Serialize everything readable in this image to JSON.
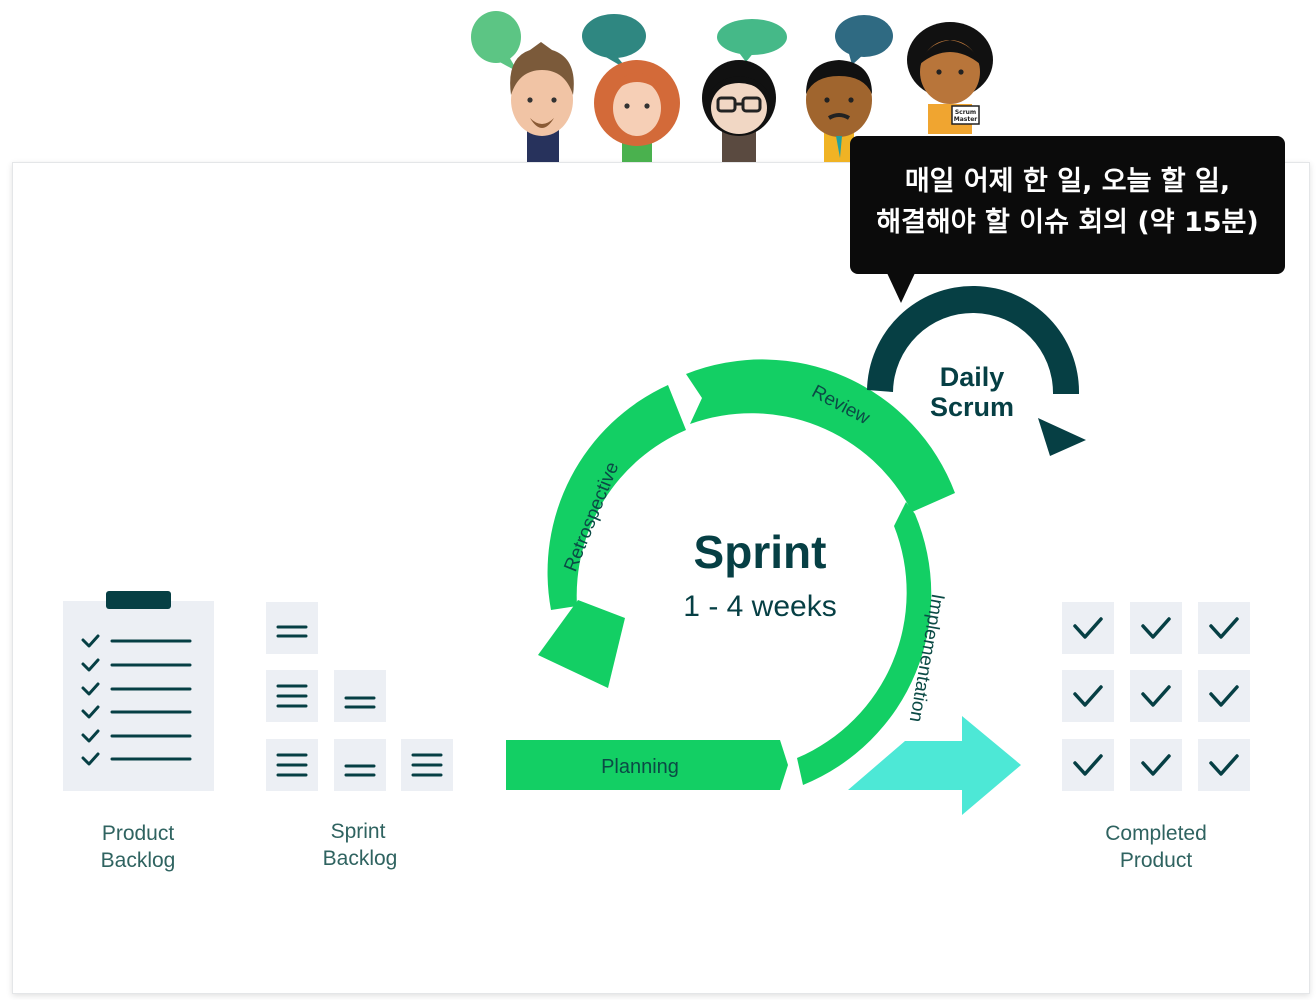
{
  "tooltip": {
    "line1": "매일 어제 한 일, 오늘 할 일,",
    "line2": "해결해야 할 이슈 회의 (약 15분)"
  },
  "sprint": {
    "title": "Sprint",
    "duration": "1 - 4 weeks"
  },
  "phases": {
    "review": "Review",
    "retrospective": "Retrospective",
    "implementation": "Implementation",
    "planning": "Planning"
  },
  "daily_scrum": {
    "line1": "Daily",
    "line2": "Scrum"
  },
  "product_backlog": {
    "line1": "Product",
    "line2": "Backlog"
  },
  "sprint_backlog": {
    "line1": "Sprint",
    "line2": "Backlog"
  },
  "completed_product": {
    "line1": "Completed",
    "line2": "Product"
  },
  "scrum_master_badge": {
    "line1": "Scrum",
    "line2": "Master"
  },
  "colors": {
    "green": "#13cf64",
    "dark_teal": "#063f44",
    "teal_text": "#2f6360",
    "cyan_arrow": "#4de8d6",
    "tile_bg": "#eceff4"
  }
}
